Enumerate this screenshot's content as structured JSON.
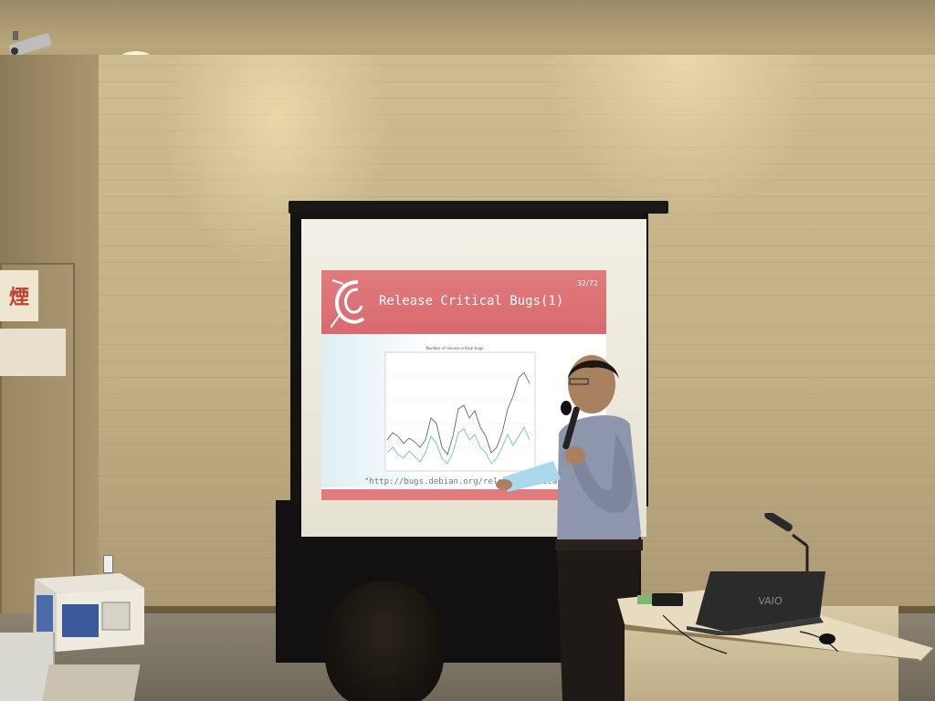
{
  "slide": {
    "title": "Release Critical Bugs(1)",
    "page": "32/72",
    "url": "\"http://bugs.debian.org/release-critical",
    "chart_title": "Number of release-critical bugs"
  },
  "signs": {
    "smoking": "煙"
  },
  "laptop": {
    "brand": "VAIO"
  },
  "colors": {
    "slide_accent": "#e07b7e",
    "wall": "#c2b086"
  }
}
